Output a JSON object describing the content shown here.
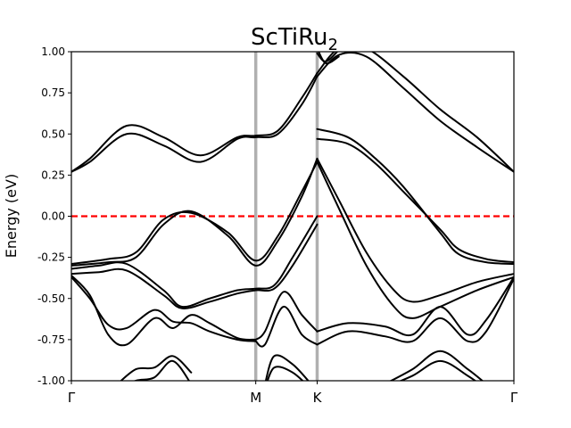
{
  "chart_data": {
    "type": "line",
    "title_base": "ScTiRu",
    "title_sub": "2",
    "xlabel": "",
    "ylabel": "Energy (eV)",
    "ylim": [
      -1.0,
      1.0
    ],
    "yticks": [
      "1.00",
      "0.75",
      "0.50",
      "0.25",
      "0.00",
      "-0.25",
      "-0.50",
      "-0.75",
      "-1.00"
    ],
    "ytick_values": [
      1.0,
      0.75,
      0.5,
      0.25,
      0.0,
      -0.25,
      -0.5,
      -0.75,
      -1.0
    ],
    "kpath": [
      "Γ",
      "M",
      "K",
      "Γ"
    ],
    "kpath_positions": [
      0.0,
      1.0,
      1.333,
      2.4
    ],
    "fermi_level": 0.0,
    "colors": {
      "bands": "#000000",
      "fermi": "#ff0000",
      "kpoint_lines": "#b0b0b0"
    },
    "grid": false,
    "series": [
      {
        "x": [
          0,
          0.1,
          0.3,
          0.5,
          0.7,
          0.9,
          1.0,
          1.12,
          1.25,
          1.333
        ],
        "y": [
          0.27,
          0.35,
          0.55,
          0.48,
          0.37,
          0.48,
          0.49,
          0.52,
          0.72,
          0.87
        ]
      },
      {
        "x": [
          0,
          0.1,
          0.3,
          0.5,
          0.7,
          0.9,
          1.0,
          1.12,
          1.25,
          1.333
        ],
        "y": [
          0.27,
          0.33,
          0.5,
          0.43,
          0.33,
          0.47,
          0.48,
          0.5,
          0.68,
          0.85
        ]
      },
      {
        "x": [
          1.333,
          1.45,
          1.6,
          1.8,
          2.0,
          2.2,
          2.4
        ],
        "y": [
          0.87,
          1.02,
          1.02,
          0.85,
          0.65,
          0.48,
          0.27
        ]
      },
      {
        "x": [
          1.333,
          1.45,
          1.6,
          1.8,
          2.0,
          2.2,
          2.4
        ],
        "y": [
          0.85,
          0.98,
          0.97,
          0.78,
          0.58,
          0.42,
          0.27
        ]
      },
      {
        "x": [
          1.333,
          1.5,
          1.65,
          1.8,
          2.0,
          2.1,
          2.25,
          2.4
        ],
        "y": [
          0.53,
          0.48,
          0.35,
          0.18,
          -0.1,
          -0.23,
          -0.28,
          -0.29
        ]
      },
      {
        "x": [
          1.333,
          1.5,
          1.65,
          1.8,
          2.0,
          2.1,
          2.25,
          2.4
        ],
        "y": [
          0.47,
          0.44,
          0.32,
          0.15,
          -0.08,
          -0.2,
          -0.26,
          -0.28
        ]
      },
      {
        "x": [
          0,
          0.2,
          0.35,
          0.5,
          0.65,
          0.85,
          1.0,
          1.12,
          1.25,
          1.333
        ],
        "y": [
          -0.3,
          -0.28,
          -0.25,
          -0.05,
          0.03,
          -0.12,
          -0.3,
          -0.15,
          0.12,
          0.35
        ]
      },
      {
        "x": [
          0,
          0.2,
          0.35,
          0.5,
          0.65,
          0.85,
          1.0,
          1.12,
          1.25,
          1.333
        ],
        "y": [
          -0.29,
          -0.26,
          -0.22,
          -0.02,
          0.02,
          -0.1,
          -0.27,
          -0.12,
          0.15,
          0.33
        ]
      },
      {
        "x": [
          1.333,
          1.45,
          1.6,
          1.75,
          1.85,
          2.0,
          2.2,
          2.4
        ],
        "y": [
          0.35,
          0.1,
          -0.22,
          -0.45,
          -0.52,
          -0.48,
          -0.4,
          -0.35
        ]
      },
      {
        "x": [
          1.333,
          1.45,
          1.6,
          1.75,
          1.85,
          2.0,
          2.2,
          2.4
        ],
        "y": [
          0.33,
          0.05,
          -0.3,
          -0.55,
          -0.62,
          -0.55,
          -0.45,
          -0.37
        ]
      },
      {
        "x": [
          0,
          0.15,
          0.3,
          0.5,
          0.6,
          0.75,
          0.9,
          1.0,
          1.1,
          1.2,
          1.333
        ],
        "y": [
          -0.32,
          -0.3,
          -0.29,
          -0.45,
          -0.55,
          -0.5,
          -0.45,
          -0.44,
          -0.42,
          -0.25,
          0.0
        ]
      },
      {
        "x": [
          0,
          0.15,
          0.3,
          0.5,
          0.6,
          0.75,
          0.9,
          1.0,
          1.1,
          1.2,
          1.333
        ],
        "y": [
          -0.35,
          -0.34,
          -0.33,
          -0.48,
          -0.56,
          -0.52,
          -0.47,
          -0.45,
          -0.44,
          -0.3,
          -0.05
        ]
      },
      {
        "x": [
          0,
          0.1,
          0.2,
          0.3,
          0.45,
          0.55,
          0.65,
          0.75,
          0.9,
          1.0
        ],
        "y": [
          -0.36,
          -0.48,
          -0.72,
          -0.78,
          -0.62,
          -0.68,
          -0.6,
          -0.65,
          -0.74,
          -0.75
        ]
      },
      {
        "x": [
          0,
          0.1,
          0.2,
          0.3,
          0.45,
          0.55,
          0.65,
          0.75,
          0.9,
          1.0
        ],
        "y": [
          -0.37,
          -0.5,
          -0.66,
          -0.68,
          -0.57,
          -0.64,
          -0.65,
          -0.7,
          -0.75,
          -0.76
        ]
      },
      {
        "x": [
          1.0,
          1.05,
          1.15,
          1.25,
          1.333
        ],
        "y": [
          -0.75,
          -0.7,
          -0.46,
          -0.6,
          -0.7
        ]
      },
      {
        "x": [
          1.0,
          1.05,
          1.15,
          1.25,
          1.333
        ],
        "y": [
          -0.76,
          -0.78,
          -0.55,
          -0.72,
          -0.78
        ]
      },
      {
        "x": [
          1.333,
          1.5,
          1.7,
          1.85,
          2.0,
          2.15,
          2.25,
          2.4
        ],
        "y": [
          -0.7,
          -0.65,
          -0.67,
          -0.72,
          -0.55,
          -0.72,
          -0.63,
          -0.37
        ]
      },
      {
        "x": [
          1.333,
          1.5,
          1.7,
          1.85,
          2.0,
          2.15,
          2.25,
          2.4
        ],
        "y": [
          -0.78,
          -0.7,
          -0.73,
          -0.76,
          -0.62,
          -0.76,
          -0.7,
          -0.38
        ]
      },
      {
        "x": [
          0.25,
          0.35,
          0.45,
          0.55,
          0.65
        ],
        "y": [
          -1.02,
          -0.93,
          -0.92,
          -0.85,
          -0.95
        ]
      },
      {
        "x": [
          0.25,
          0.35,
          0.45,
          0.55,
          0.65
        ],
        "y": [
          -1.05,
          -1.0,
          -0.98,
          -0.88,
          -1.02
        ]
      },
      {
        "x": [
          1.05,
          1.1,
          1.2,
          1.3
        ],
        "y": [
          -1.02,
          -0.85,
          -0.9,
          -1.02
        ]
      },
      {
        "x": [
          1.05,
          1.1,
          1.2,
          1.3
        ],
        "y": [
          -1.05,
          -0.92,
          -0.95,
          -1.05
        ]
      },
      {
        "x": [
          1.7,
          1.85,
          2.0,
          2.15,
          2.25
        ],
        "y": [
          -1.02,
          -0.93,
          -0.82,
          -0.93,
          -1.02
        ]
      },
      {
        "x": [
          1.7,
          1.85,
          2.0,
          2.15,
          2.25
        ],
        "y": [
          -1.04,
          -0.97,
          -0.88,
          -0.97,
          -1.05
        ]
      },
      {
        "x": [
          1.333,
          1.38,
          1.45
        ],
        "y": [
          1.02,
          0.93,
          0.97
        ]
      },
      {
        "x": [
          1.333,
          1.38,
          1.45
        ],
        "y": [
          0.99,
          0.94,
          1.01
        ]
      }
    ]
  }
}
